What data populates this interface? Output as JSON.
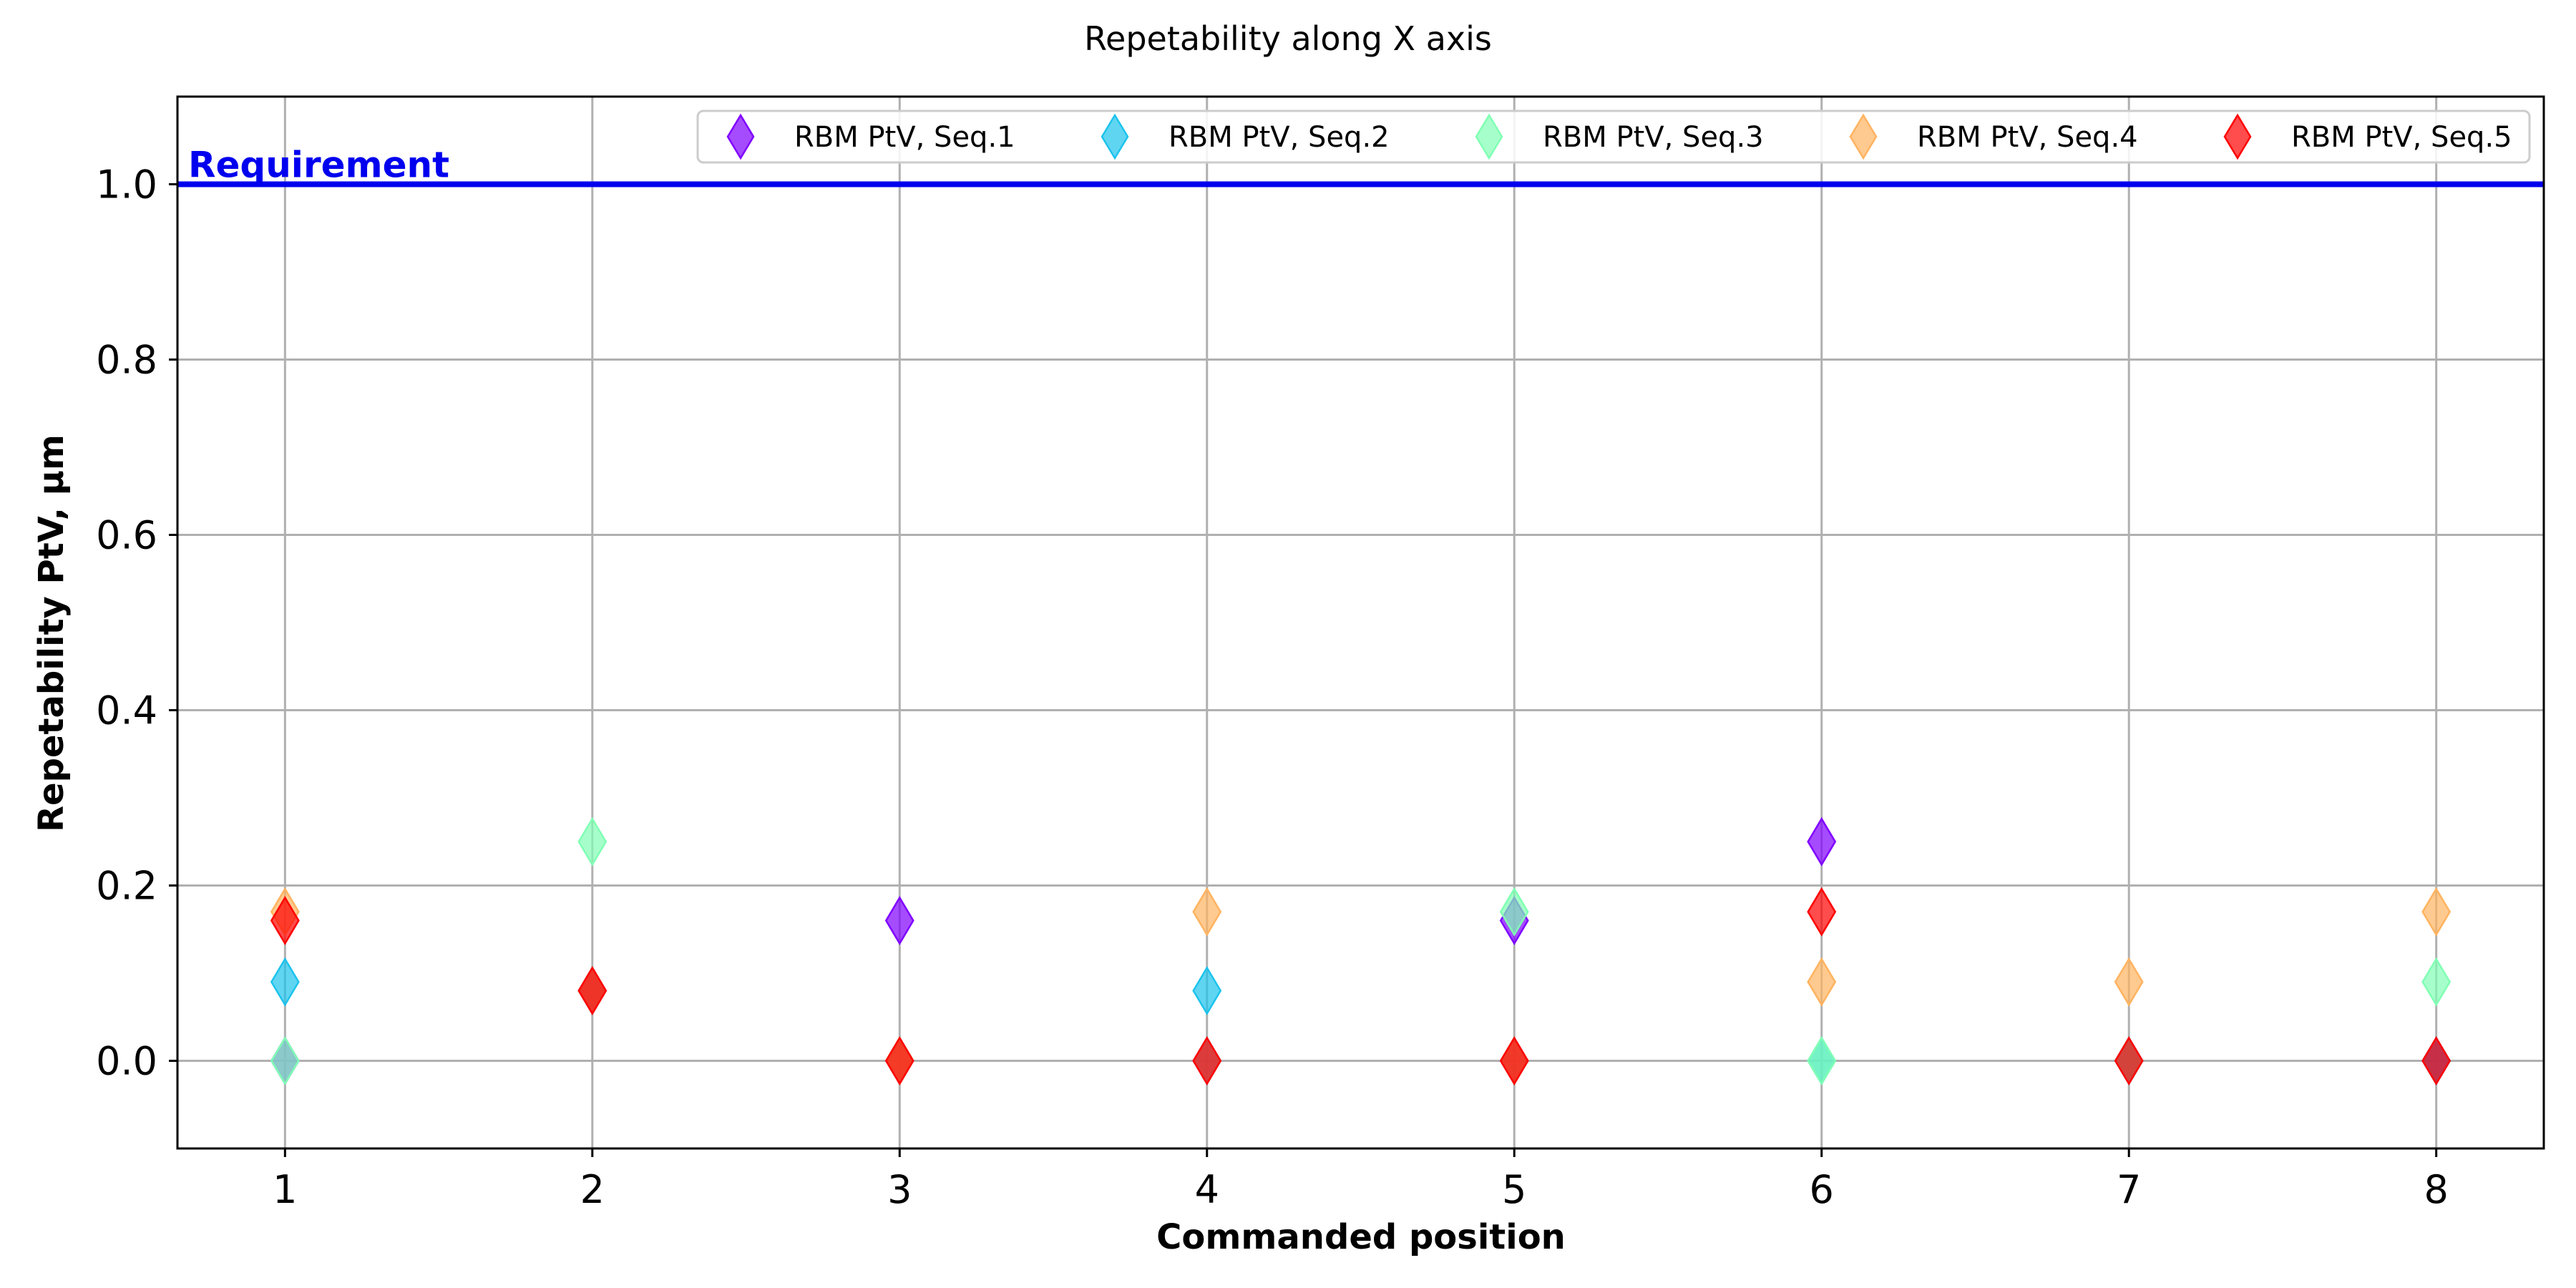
{
  "chart_data": {
    "type": "scatter",
    "title": "Repetability along X axis",
    "xlabel": "Commanded position",
    "ylabel": "Repetability PtV, μm",
    "xlim": [
      0.65,
      8.35
    ],
    "ylim": [
      -0.1,
      1.1
    ],
    "xticks": [
      1,
      2,
      3,
      4,
      5,
      6,
      7,
      8
    ],
    "yticks": [
      0.0,
      0.2,
      0.4,
      0.6,
      0.8,
      1.0
    ],
    "grid": true,
    "legend_position": "top-right",
    "marker": "thin-diamond",
    "requirement": {
      "label": "Requirement",
      "value": 1.0,
      "color": "#0000ee"
    },
    "series": [
      {
        "name": "RBM PtV, Seq.1",
        "color": "#8000ff",
        "points": [
          [
            1,
            0.0
          ],
          [
            2,
            0.08
          ],
          [
            3,
            0.16
          ],
          [
            4,
            0.0
          ],
          [
            5,
            0.16
          ],
          [
            6,
            0.25
          ],
          [
            7,
            0.0
          ],
          [
            8,
            0.0
          ]
        ]
      },
      {
        "name": "RBM PtV, Seq.2",
        "color": "#1cc3ec",
        "points": [
          [
            1,
            0.09
          ],
          [
            2,
            0.08
          ],
          [
            3,
            0.0
          ],
          [
            4,
            0.08
          ],
          [
            5,
            0.0
          ],
          [
            6,
            0.0
          ],
          [
            7,
            0.0
          ],
          [
            8,
            0.0
          ]
        ]
      },
      {
        "name": "RBM PtV, Seq.3",
        "color": "#80ffb4",
        "points": [
          [
            1,
            0.0
          ],
          [
            2,
            0.25
          ],
          [
            3,
            0.0
          ],
          [
            4,
            0.0
          ],
          [
            5,
            0.17
          ],
          [
            6,
            0.0
          ],
          [
            7,
            0.0
          ],
          [
            8,
            0.09
          ]
        ]
      },
      {
        "name": "RBM PtV, Seq.4",
        "color": "#ffb360",
        "points": [
          [
            1,
            0.17
          ],
          [
            2,
            0.08
          ],
          [
            3,
            0.0
          ],
          [
            4,
            0.17
          ],
          [
            5,
            0.0
          ],
          [
            6,
            0.09
          ],
          [
            7,
            0.09
          ],
          [
            8,
            0.17
          ]
        ]
      },
      {
        "name": "RBM PtV, Seq.5",
        "color": "#ff0000",
        "points": [
          [
            1,
            0.16
          ],
          [
            2,
            0.08
          ],
          [
            3,
            0.0
          ],
          [
            4,
            0.0
          ],
          [
            5,
            0.0
          ],
          [
            6,
            0.17
          ],
          [
            7,
            0.0
          ],
          [
            8,
            0.0
          ]
        ]
      }
    ]
  }
}
